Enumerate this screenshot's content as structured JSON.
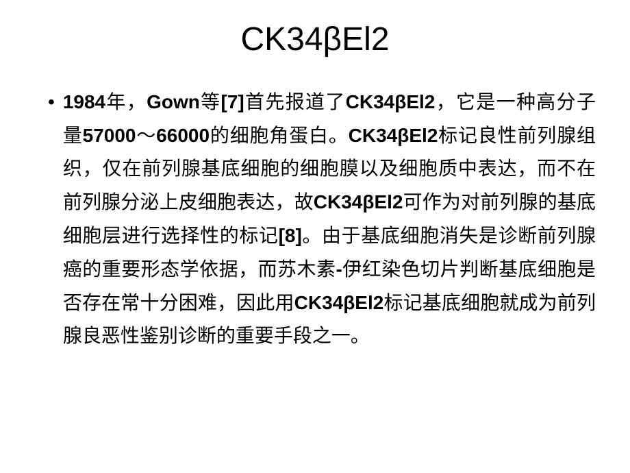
{
  "slide": {
    "title": "CK34βEl2",
    "bullet": {
      "marker": "•",
      "segments": [
        {
          "text": "1984",
          "bold": true
        },
        {
          "text": "年，",
          "bold": false
        },
        {
          "text": "Gown",
          "bold": true
        },
        {
          "text": "等",
          "bold": false
        },
        {
          "text": "[7]",
          "bold": true
        },
        {
          "text": "首先报道了",
          "bold": false
        },
        {
          "text": "CK34βEl2",
          "bold": true
        },
        {
          "text": "，它是一种高分子量",
          "bold": false
        },
        {
          "text": "57000",
          "bold": true
        },
        {
          "text": "～",
          "bold": false
        },
        {
          "text": "66000",
          "bold": true
        },
        {
          "text": "的细胞角蛋白。",
          "bold": false
        },
        {
          "text": "CK34βEl2",
          "bold": true
        },
        {
          "text": "标记良性前列腺组织，仅在前列腺基底细胞的细胞膜以及细胞质中表达，而不在前列腺分泌上皮细胞表达，故",
          "bold": false
        },
        {
          "text": "CK34βEl2",
          "bold": true
        },
        {
          "text": "可作为对前列腺的基底细胞层进行选择性的标记",
          "bold": false
        },
        {
          "text": "[8]",
          "bold": true
        },
        {
          "text": "。由于基底细胞消失是诊断前列腺癌的重要形态学依据，而苏木素",
          "bold": false
        },
        {
          "text": "-",
          "bold": true
        },
        {
          "text": "伊红染色切片判断基底细胞是否存在常十分困难，因此用",
          "bold": false
        },
        {
          "text": "CK34βEl2",
          "bold": true
        },
        {
          "text": "标记基底细胞就成为前列腺良恶性鉴别诊断的重要手段之一。",
          "bold": false
        }
      ]
    }
  },
  "style": {
    "background_color": "#ffffff",
    "text_color": "#000000",
    "title_fontsize": 48,
    "body_fontsize": 28,
    "line_height": 48,
    "title_font_family": "Arial, SimSun, sans-serif",
    "body_font_family": "SimSun, Microsoft YaHei, serif",
    "bold_font_family": "Arial, SimHei, sans-serif",
    "slide_width": 920,
    "slide_height": 690
  }
}
